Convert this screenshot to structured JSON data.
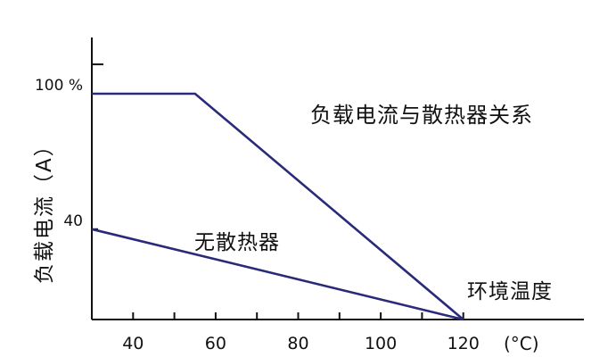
{
  "chart_data": {
    "type": "line",
    "title": "负载电流与散热器关系",
    "xlabel": "环境温度",
    "xunit": "(°C)",
    "ylabel": "负载电流（A）",
    "xlim": [
      30,
      130
    ],
    "ylim": [
      0,
      120
    ],
    "x_ticks": [
      40,
      60,
      80,
      100,
      120
    ],
    "x_minor_ticks": [
      50,
      70,
      90,
      110
    ],
    "y_ticks": [
      40,
      100
    ],
    "y_tick_labels": [
      "40",
      "100 %"
    ],
    "y_top_mark": 113,
    "grid": false,
    "line_color": "#2a2a7a",
    "series": [
      {
        "name": "",
        "x": [
          30,
          55,
          120
        ],
        "y": [
          100,
          100,
          0
        ]
      },
      {
        "name": "无散热器",
        "x": [
          30,
          120
        ],
        "y": [
          40,
          0
        ]
      }
    ],
    "annotations": [
      {
        "text": "无散热器"
      }
    ]
  }
}
